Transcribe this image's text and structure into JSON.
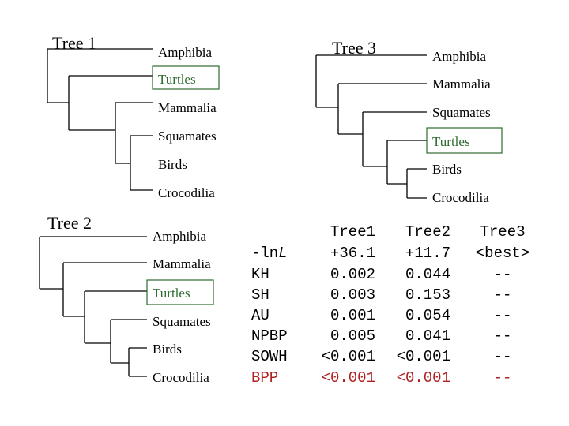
{
  "trees": [
    {
      "title": "Tree 1",
      "leaves": [
        "Amphibia",
        "Turtles",
        "Mammalia",
        "Squamates",
        "Birds",
        "Crocodilia"
      ],
      "highlight": "Turtles"
    },
    {
      "title": "Tree 2",
      "leaves": [
        "Amphibia",
        "Mammalia",
        "Turtles",
        "Squamates",
        "Birds",
        "Crocodilia"
      ],
      "highlight": "Turtles"
    },
    {
      "title": "Tree 3",
      "leaves": [
        "Amphibia",
        "Mammalia",
        "Squamates",
        "Turtles",
        "Birds",
        "Crocodilia"
      ],
      "highlight": "Turtles"
    }
  ],
  "table": {
    "columns": [
      "Tree1",
      "Tree2",
      "Tree3"
    ],
    "rows": [
      {
        "label": "-lnL",
        "values": [
          "+36.1",
          "+11.7",
          "<best>"
        ]
      },
      {
        "label": "KH",
        "values": [
          "0.002",
          "0.044",
          "--"
        ]
      },
      {
        "label": "SH",
        "values": [
          "0.003",
          "0.153",
          "--"
        ]
      },
      {
        "label": "AU",
        "values": [
          "0.001",
          "0.054",
          "--"
        ]
      },
      {
        "label": "NPBP",
        "values": [
          "0.005",
          "0.041",
          "--"
        ]
      },
      {
        "label": "SOWH",
        "values": [
          "<0.001",
          "<0.001",
          "--"
        ]
      },
      {
        "label": "BPP",
        "values": [
          "<0.001",
          "<0.001",
          "--"
        ],
        "color": "#b02020"
      }
    ]
  },
  "colors": {
    "highlight": "#2e6b30",
    "bpp": "#b02020"
  }
}
